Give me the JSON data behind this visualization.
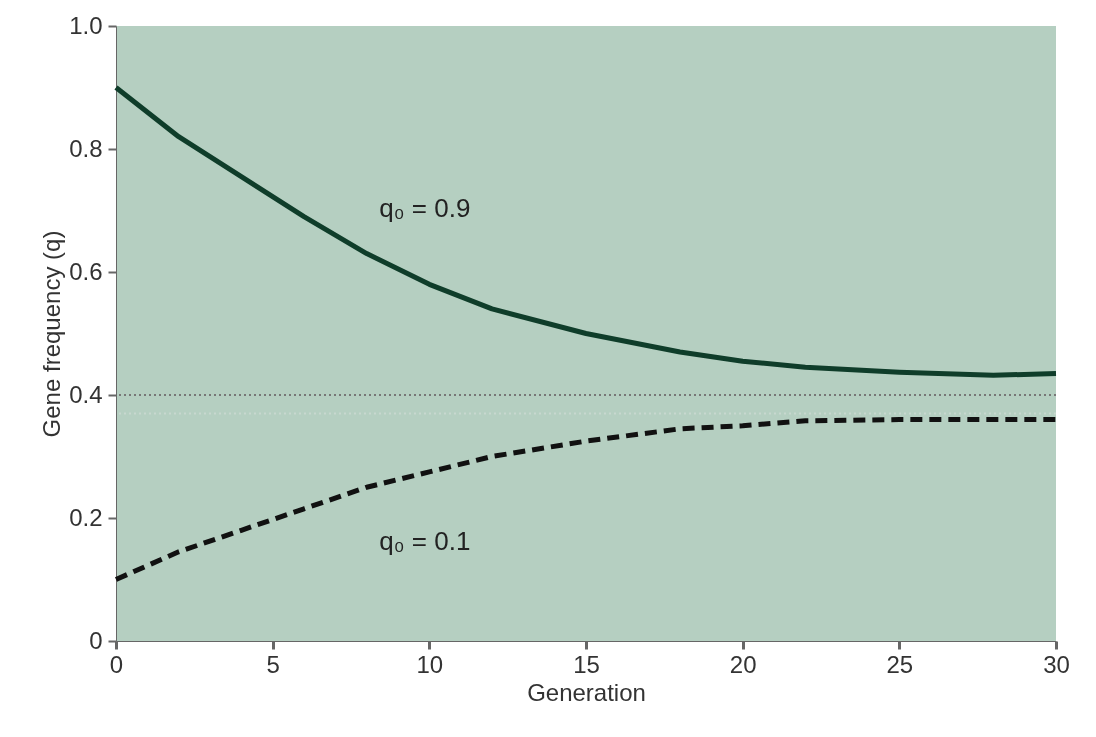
{
  "chart_data": {
    "type": "line",
    "xlabel": "Generation",
    "ylabel": "Gene frequency (q)",
    "xlim": [
      0,
      30
    ],
    "xticks": [
      0,
      5,
      10,
      15,
      20,
      25,
      30
    ],
    "ylim": [
      0,
      1
    ],
    "yticks": [
      0,
      0.2,
      0.4,
      0.6,
      0.8,
      {
        "value": 1,
        "label": "1.0"
      }
    ],
    "grid": false,
    "series": [
      {
        "color": "#0f3d2a",
        "line_style": "solid",
        "x": [
          0,
          2,
          4,
          6,
          8,
          10,
          12,
          15,
          18,
          20,
          22,
          25,
          28,
          30
        ],
        "values": [
          0.9,
          0.82,
          0.755,
          0.69,
          0.63,
          0.58,
          0.54,
          0.5,
          0.47,
          0.455,
          0.445,
          0.437,
          0.432,
          0.435
        ]
      },
      {
        "color": "#111111",
        "line_style": "dashed",
        "x": [
          0,
          2,
          4,
          6,
          8,
          10,
          12,
          15,
          18,
          20,
          22,
          25,
          30
        ],
        "values": [
          0.1,
          0.145,
          0.18,
          0.215,
          0.25,
          0.275,
          0.3,
          0.325,
          0.345,
          0.35,
          0.358,
          0.36,
          0.36
        ]
      }
    ],
    "ref_lines": [
      {
        "axis": "y",
        "value": 0.4,
        "color": "#777777",
        "line_style": "dotted"
      },
      {
        "axis": "y",
        "value": 0.37,
        "color": "#c8d8cf",
        "line_style": "dotted"
      }
    ],
    "annotations": [
      "q₀ = 0.9",
      "q₀ = 0.1"
    ]
  }
}
